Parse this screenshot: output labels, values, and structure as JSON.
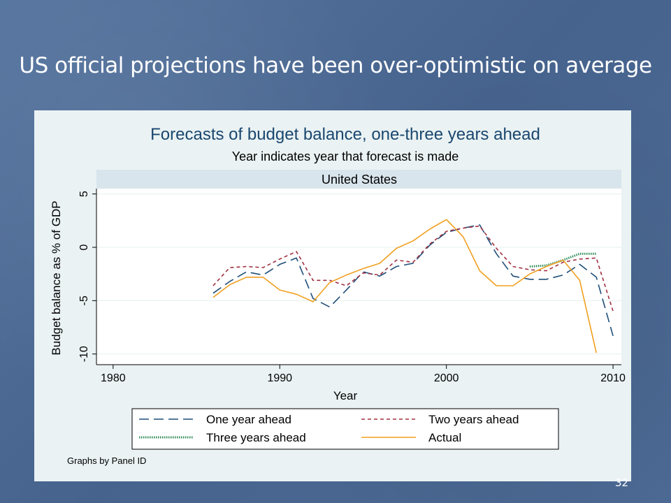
{
  "slide": {
    "title": "US official projections have been over-optimistic on average",
    "page_number": "32"
  },
  "chart_data": {
    "type": "line",
    "title": "Forecasts of budget balance, one-three years ahead",
    "subtitle": "Year indicates year that forecast is made",
    "panel_label": "United States",
    "xlabel": "Year",
    "ylabel": "Budget balance as % of GDP",
    "xlim": [
      1979,
      2010.5
    ],
    "ylim": [
      -11,
      5.5
    ],
    "xticks": [
      1980,
      1990,
      2000,
      2010
    ],
    "yticks": [
      5,
      0,
      -5,
      -10
    ],
    "grid": true,
    "legend_position": "bottom",
    "note": "Graphs by Panel ID",
    "series": [
      {
        "name": "One year ahead",
        "color": "#1f4e79",
        "dash": "long-dash",
        "points": [
          [
            1986,
            -4.3
          ],
          [
            1987,
            -3.2
          ],
          [
            1988,
            -2.3
          ],
          [
            1989,
            -2.6
          ],
          [
            1990,
            -1.6
          ],
          [
            1991,
            -1.0
          ],
          [
            1992,
            -4.8
          ],
          [
            1993,
            -5.6
          ],
          [
            1994,
            -4.0
          ],
          [
            1995,
            -2.3
          ],
          [
            1996,
            -2.7
          ],
          [
            1997,
            -1.8
          ],
          [
            1998,
            -1.5
          ],
          [
            1999,
            0.2
          ],
          [
            2000,
            1.4
          ],
          [
            2001,
            1.8
          ],
          [
            2002,
            2.1
          ],
          [
            2003,
            -0.6
          ],
          [
            2004,
            -2.7
          ],
          [
            2005,
            -3.0
          ],
          [
            2006,
            -3.0
          ],
          [
            2007,
            -2.6
          ],
          [
            2008,
            -1.6
          ],
          [
            2009,
            -2.8
          ],
          [
            2010,
            -8.3
          ]
        ]
      },
      {
        "name": "Two years ahead",
        "color": "#a03040",
        "dash": "short-dash",
        "points": [
          [
            1986,
            -3.6
          ],
          [
            1987,
            -1.9
          ],
          [
            1988,
            -1.8
          ],
          [
            1989,
            -1.9
          ],
          [
            1990,
            -1.1
          ],
          [
            1991,
            -0.4
          ],
          [
            1992,
            -3.1
          ],
          [
            1993,
            -3.1
          ],
          [
            1994,
            -3.6
          ],
          [
            1995,
            -2.4
          ],
          [
            1996,
            -2.6
          ],
          [
            1997,
            -1.2
          ],
          [
            1998,
            -1.4
          ],
          [
            1999,
            0.3
          ],
          [
            2000,
            1.5
          ],
          [
            2001,
            1.8
          ],
          [
            2002,
            2.0
          ],
          [
            2003,
            -0.1
          ],
          [
            2004,
            -1.8
          ],
          [
            2005,
            -2.1
          ],
          [
            2006,
            -2.2
          ],
          [
            2007,
            -1.4
          ],
          [
            2008,
            -1.1
          ],
          [
            2009,
            -1.0
          ],
          [
            2010,
            -6.0
          ]
        ]
      },
      {
        "name": "Three years ahead",
        "color": "#2e8b57",
        "dash": "dotted",
        "points": [
          [
            2005,
            -1.8
          ],
          [
            2006,
            -1.7
          ],
          [
            2007,
            -1.2
          ],
          [
            2008,
            -0.6
          ],
          [
            2009,
            -0.6
          ]
        ]
      },
      {
        "name": "Actual",
        "color": "#f0a020",
        "dash": "solid",
        "points": [
          [
            1986,
            -4.7
          ],
          [
            1987,
            -3.5
          ],
          [
            1988,
            -2.8
          ],
          [
            1989,
            -2.8
          ],
          [
            1990,
            -4.0
          ],
          [
            1991,
            -4.4
          ],
          [
            1992,
            -5.1
          ],
          [
            1993,
            -3.3
          ],
          [
            1994,
            -2.6
          ],
          [
            1995,
            -2.0
          ],
          [
            1996,
            -1.5
          ],
          [
            1997,
            -0.1
          ],
          [
            1998,
            0.6
          ],
          [
            1999,
            1.7
          ],
          [
            2000,
            2.6
          ],
          [
            2001,
            1.0
          ],
          [
            2002,
            -2.2
          ],
          [
            2003,
            -3.6
          ],
          [
            2004,
            -3.6
          ],
          [
            2005,
            -2.5
          ],
          [
            2006,
            -1.8
          ],
          [
            2007,
            -1.2
          ],
          [
            2008,
            -3.1
          ],
          [
            2009,
            -9.9
          ]
        ]
      }
    ]
  }
}
